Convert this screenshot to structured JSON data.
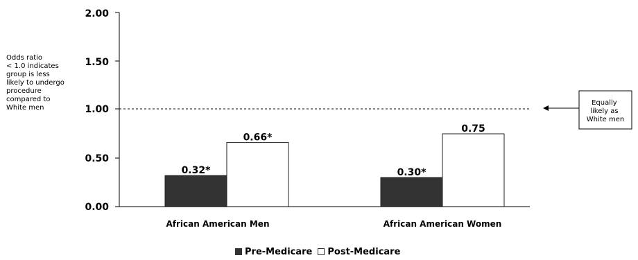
{
  "chart_data": {
    "type": "bar",
    "categories": [
      "African American Men",
      "African American Women"
    ],
    "series": [
      {
        "name": "Pre-Medicare",
        "values": [
          0.32,
          0.3
        ],
        "labels": [
          "0.32*",
          "0.30*"
        ],
        "color": "#333333"
      },
      {
        "name": "Post-Medicare",
        "values": [
          0.66,
          0.75
        ],
        "labels": [
          "0.66*",
          "0.75"
        ],
        "color": "#ffffff"
      }
    ],
    "yticks": [
      "0.00",
      "0.50",
      "1.00",
      "1.50",
      "2.00"
    ],
    "ylim": [
      0,
      2
    ],
    "reference_line": {
      "value": 1.0,
      "style": "dashed"
    },
    "annotations": {
      "left_note": [
        "Odds ratio",
        "< 1.0 indicates",
        "group is less",
        "likely to undergo",
        "procedure",
        "compared to",
        "White men"
      ],
      "right_box": [
        "Equally",
        "likely as",
        "White men"
      ]
    },
    "legend": {
      "placement": "bottom-center"
    }
  }
}
